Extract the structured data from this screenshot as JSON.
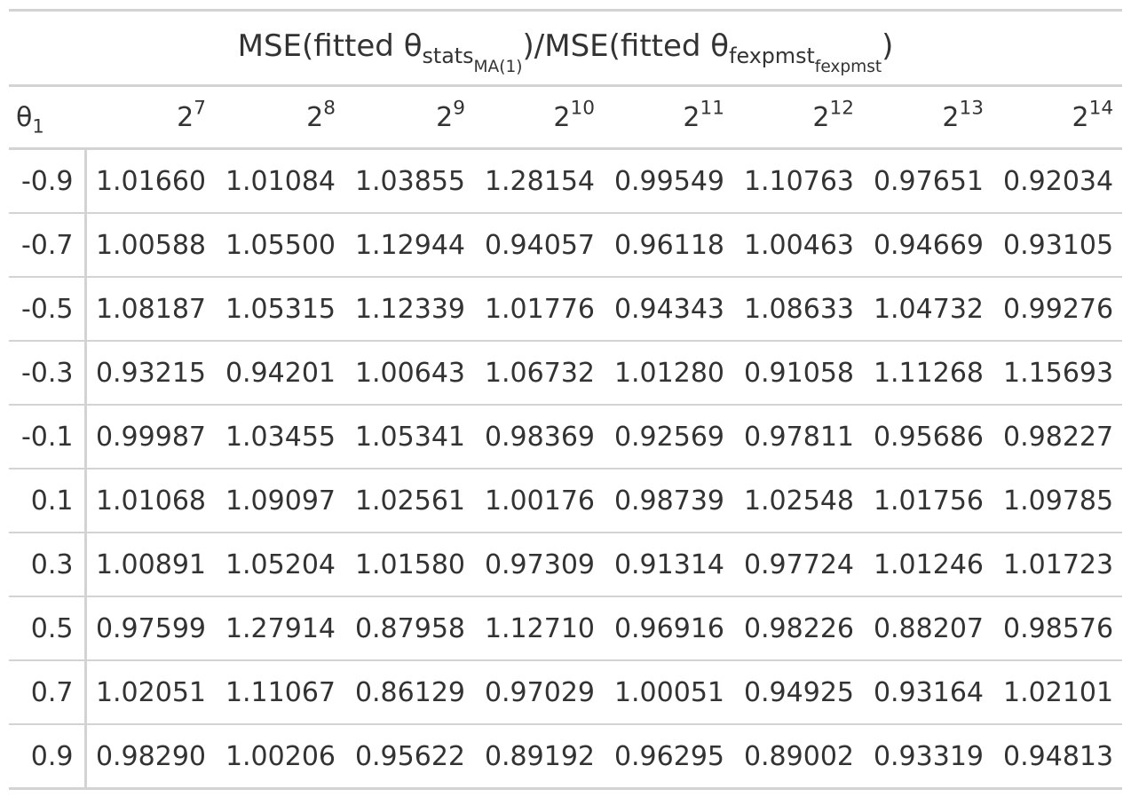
{
  "table": {
    "title": {
      "prefix": "MSE(fitted θ",
      "sub_a": "stats",
      "sub_a_sub": "MA(1)",
      "middle": ")/MSE(fitted θ",
      "sub_b": "fexpmst",
      "sub_b_sub": "fexpmst",
      "suffix": ")"
    },
    "stub_header": {
      "base": "θ",
      "sub": "1"
    },
    "columns": [
      {
        "base": "2",
        "exp": "7"
      },
      {
        "base": "2",
        "exp": "8"
      },
      {
        "base": "2",
        "exp": "9"
      },
      {
        "base": "2",
        "exp": "10"
      },
      {
        "base": "2",
        "exp": "11"
      },
      {
        "base": "2",
        "exp": "12"
      },
      {
        "base": "2",
        "exp": "13"
      },
      {
        "base": "2",
        "exp": "14"
      }
    ],
    "rows": [
      {
        "theta": "-0.9",
        "values": [
          "1.01660",
          "1.01084",
          "1.03855",
          "1.28154",
          "0.99549",
          "1.10763",
          "0.97651",
          "0.92034"
        ]
      },
      {
        "theta": "-0.7",
        "values": [
          "1.00588",
          "1.05500",
          "1.12944",
          "0.94057",
          "0.96118",
          "1.00463",
          "0.94669",
          "0.93105"
        ]
      },
      {
        "theta": "-0.5",
        "values": [
          "1.08187",
          "1.05315",
          "1.12339",
          "1.01776",
          "0.94343",
          "1.08633",
          "1.04732",
          "0.99276"
        ]
      },
      {
        "theta": "-0.3",
        "values": [
          "0.93215",
          "0.94201",
          "1.00643",
          "1.06732",
          "1.01280",
          "0.91058",
          "1.11268",
          "1.15693"
        ]
      },
      {
        "theta": "-0.1",
        "values": [
          "0.99987",
          "1.03455",
          "1.05341",
          "0.98369",
          "0.92569",
          "0.97811",
          "0.95686",
          "0.98227"
        ]
      },
      {
        "theta": "0.1",
        "values": [
          "1.01068",
          "1.09097",
          "1.02561",
          "1.00176",
          "0.98739",
          "1.02548",
          "1.01756",
          "1.09785"
        ]
      },
      {
        "theta": "0.3",
        "values": [
          "1.00891",
          "1.05204",
          "1.01580",
          "0.97309",
          "0.91314",
          "0.97724",
          "1.01246",
          "1.01723"
        ]
      },
      {
        "theta": "0.5",
        "values": [
          "0.97599",
          "1.27914",
          "0.87958",
          "1.12710",
          "0.96916",
          "0.98226",
          "0.88207",
          "0.98576"
        ]
      },
      {
        "theta": "0.7",
        "values": [
          "1.02051",
          "1.11067",
          "0.86129",
          "0.97029",
          "1.00051",
          "0.94925",
          "0.93164",
          "1.02101"
        ]
      },
      {
        "theta": "0.9",
        "values": [
          "0.98290",
          "1.00206",
          "0.95622",
          "0.89192",
          "0.96295",
          "0.89002",
          "0.93319",
          "0.94813"
        ]
      }
    ]
  }
}
